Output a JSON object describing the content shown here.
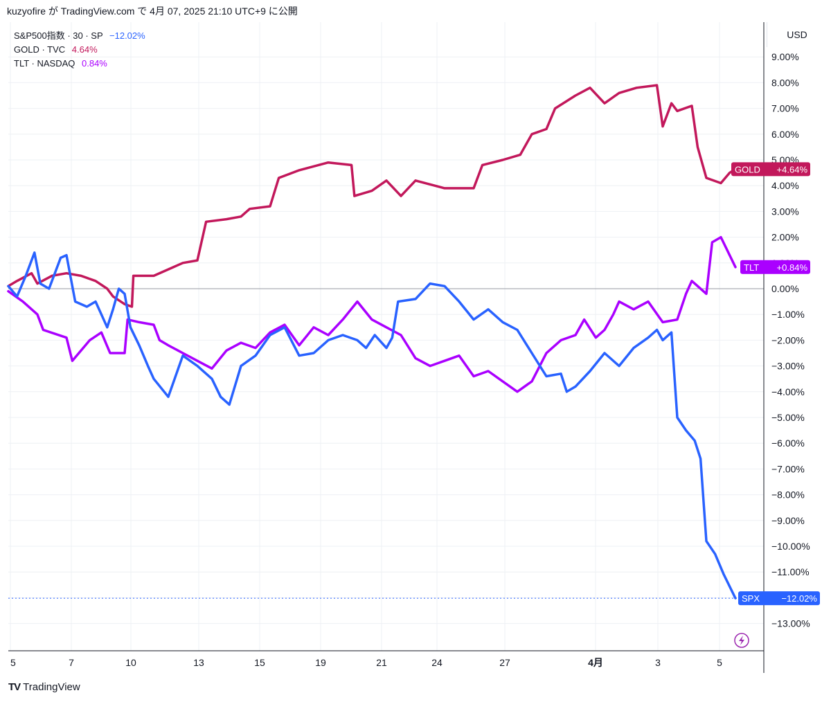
{
  "header": {
    "text": "kuzyofire が TradingView.com で 4月 07, 2025 21:10 UTC+9 に公開"
  },
  "legend": [
    {
      "symbol": "S&P500指数 · 30 · SP",
      "value": "−12.02%",
      "color": "#2962ff"
    },
    {
      "symbol": "GOLD · TVC",
      "value": "4.64%",
      "color": "#c2185b"
    },
    {
      "symbol": "TLT · NASDAQ",
      "value": "0.84%",
      "color": "#aa00ff"
    }
  ],
  "axis": {
    "currency": "USD"
  },
  "footer": {
    "brand": "TradingView",
    "logo": "TV"
  },
  "colors": {
    "spx": "#2962ff",
    "gold": "#c2185b",
    "tlt": "#aa00ff",
    "grid": "#eef0f4",
    "zero": "#9598a1"
  },
  "chart_data": {
    "type": "line",
    "y_unit": "%",
    "ylim": [
      -14,
      10
    ],
    "y_ticks": [
      9,
      8,
      7,
      6,
      5,
      4,
      3,
      2,
      1,
      0,
      -1,
      -2,
      -3,
      -4,
      -5,
      -6,
      -7,
      -8,
      -9,
      -10,
      -11,
      -12,
      -13
    ],
    "y_tick_labels": [
      "9.00%",
      "8.00%",
      "7.00%",
      "6.00%",
      "5.00%",
      "4.00%",
      "3.00%",
      "2.00%",
      "1.00%",
      "0.00%",
      "−1.00%",
      "−2.00%",
      "−3.00%",
      "−4.00%",
      "−5.00%",
      "−6.00%",
      "−7.00%",
      "−8.00%",
      "−9.00%",
      "−10.00%",
      "−11.00%",
      "−12.00%",
      "−13.00%"
    ],
    "x_ticks": [
      "5",
      "7",
      "10",
      "13",
      "15",
      "19",
      "21",
      "24",
      "27",
      "4月",
      "3",
      "5"
    ],
    "grid": true,
    "series": [
      {
        "name": "GOLD",
        "tag": "+4.64%",
        "points": [
          [
            0,
            0.1
          ],
          [
            0.3,
            0.3
          ],
          [
            0.8,
            0.6
          ],
          [
            1.0,
            0.2
          ],
          [
            1.5,
            0.5
          ],
          [
            2.0,
            0.6
          ],
          [
            2.5,
            0.5
          ],
          [
            3.0,
            0.3
          ],
          [
            3.4,
            0
          ],
          [
            3.6,
            -0.3
          ],
          [
            4.0,
            -0.6
          ],
          [
            4.25,
            -0.7
          ],
          [
            4.3,
            0.5
          ],
          [
            5.0,
            0.5
          ],
          [
            6.0,
            1.0
          ],
          [
            6.5,
            1.1
          ],
          [
            6.8,
            2.6
          ],
          [
            7.5,
            2.7
          ],
          [
            8.0,
            2.8
          ],
          [
            8.3,
            3.1
          ],
          [
            9.0,
            3.2
          ],
          [
            9.3,
            4.3
          ],
          [
            10.0,
            4.6
          ],
          [
            11.0,
            4.9
          ],
          [
            11.8,
            4.8
          ],
          [
            11.9,
            3.6
          ],
          [
            12.5,
            3.8
          ],
          [
            13.0,
            4.2
          ],
          [
            13.5,
            3.6
          ],
          [
            14.0,
            4.2
          ],
          [
            15.0,
            3.9
          ],
          [
            16.0,
            3.9
          ],
          [
            16.3,
            4.8
          ],
          [
            17.0,
            5.0
          ],
          [
            17.6,
            5.2
          ],
          [
            18.0,
            6.0
          ],
          [
            18.5,
            6.2
          ],
          [
            18.8,
            7.0
          ],
          [
            19.5,
            7.5
          ],
          [
            20.0,
            7.8
          ],
          [
            20.5,
            7.2
          ],
          [
            21.0,
            7.6
          ],
          [
            21.6,
            7.8
          ],
          [
            22.3,
            7.9
          ],
          [
            22.5,
            6.3
          ],
          [
            22.8,
            7.2
          ],
          [
            23.0,
            6.9
          ],
          [
            23.5,
            7.1
          ],
          [
            23.7,
            5.5
          ],
          [
            24.0,
            4.3
          ],
          [
            24.5,
            4.1
          ],
          [
            24.8,
            4.5
          ],
          [
            25.0,
            4.64
          ]
        ]
      },
      {
        "name": "TLT",
        "tag": "+0.84%",
        "points": [
          [
            0,
            -0.1
          ],
          [
            0.5,
            -0.5
          ],
          [
            1.0,
            -1.0
          ],
          [
            1.2,
            -1.6
          ],
          [
            2.0,
            -1.9
          ],
          [
            2.2,
            -2.8
          ],
          [
            2.8,
            -2.0
          ],
          [
            3.2,
            -1.7
          ],
          [
            3.5,
            -2.5
          ],
          [
            4.0,
            -2.5
          ],
          [
            4.1,
            -1.2
          ],
          [
            4.5,
            -1.3
          ],
          [
            5.0,
            -1.4
          ],
          [
            5.2,
            -2.0
          ],
          [
            5.5,
            -2.2
          ],
          [
            6.0,
            -2.5
          ],
          [
            6.5,
            -2.8
          ],
          [
            7.0,
            -3.1
          ],
          [
            7.5,
            -2.4
          ],
          [
            8.0,
            -2.1
          ],
          [
            8.5,
            -2.3
          ],
          [
            9.0,
            -1.7
          ],
          [
            9.5,
            -1.4
          ],
          [
            10.0,
            -2.2
          ],
          [
            10.5,
            -1.5
          ],
          [
            11.0,
            -1.8
          ],
          [
            11.5,
            -1.2
          ],
          [
            12.0,
            -0.5
          ],
          [
            12.5,
            -1.2
          ],
          [
            13.0,
            -1.5
          ],
          [
            13.5,
            -1.8
          ],
          [
            14.0,
            -2.7
          ],
          [
            14.5,
            -3.0
          ],
          [
            15.0,
            -2.8
          ],
          [
            15.5,
            -2.6
          ],
          [
            16.0,
            -3.4
          ],
          [
            16.5,
            -3.2
          ],
          [
            17.0,
            -3.6
          ],
          [
            17.5,
            -4.0
          ],
          [
            18.0,
            -3.6
          ],
          [
            18.5,
            -2.5
          ],
          [
            19.0,
            -2.0
          ],
          [
            19.5,
            -1.8
          ],
          [
            19.8,
            -1.2
          ],
          [
            20.2,
            -1.9
          ],
          [
            20.5,
            -1.6
          ],
          [
            20.8,
            -1.0
          ],
          [
            21.0,
            -0.5
          ],
          [
            21.5,
            -0.8
          ],
          [
            22.0,
            -0.5
          ],
          [
            22.5,
            -1.3
          ],
          [
            23.0,
            -1.2
          ],
          [
            23.3,
            -0.2
          ],
          [
            23.5,
            0.3
          ],
          [
            24.0,
            -0.2
          ],
          [
            24.2,
            1.8
          ],
          [
            24.5,
            2.0
          ],
          [
            25.0,
            0.84
          ]
        ]
      },
      {
        "name": "SPX",
        "tag": "−12.02%",
        "points": [
          [
            0,
            0.1
          ],
          [
            0.3,
            -0.3
          ],
          [
            0.6,
            0.5
          ],
          [
            0.9,
            1.4
          ],
          [
            1.1,
            0.2
          ],
          [
            1.4,
            0.0
          ],
          [
            1.8,
            1.2
          ],
          [
            2.0,
            1.3
          ],
          [
            2.3,
            -0.5
          ],
          [
            2.7,
            -0.7
          ],
          [
            3.0,
            -0.5
          ],
          [
            3.2,
            -1.0
          ],
          [
            3.4,
            -1.5
          ],
          [
            3.6,
            -0.8
          ],
          [
            3.8,
            0.0
          ],
          [
            4.0,
            -0.2
          ],
          [
            4.2,
            -1.5
          ],
          [
            4.5,
            -2.2
          ],
          [
            4.8,
            -3.0
          ],
          [
            5.0,
            -3.5
          ],
          [
            5.5,
            -4.2
          ],
          [
            6.0,
            -2.6
          ],
          [
            6.5,
            -3.0
          ],
          [
            7.0,
            -3.5
          ],
          [
            7.3,
            -4.2
          ],
          [
            7.6,
            -4.5
          ],
          [
            8.0,
            -3.0
          ],
          [
            8.5,
            -2.6
          ],
          [
            9.0,
            -1.8
          ],
          [
            9.5,
            -1.5
          ],
          [
            10.0,
            -2.6
          ],
          [
            10.5,
            -2.5
          ],
          [
            11.0,
            -2.0
          ],
          [
            11.5,
            -1.8
          ],
          [
            12.0,
            -2.0
          ],
          [
            12.3,
            -2.3
          ],
          [
            12.6,
            -1.8
          ],
          [
            13.0,
            -2.3
          ],
          [
            13.2,
            -1.9
          ],
          [
            13.4,
            -0.5
          ],
          [
            14.0,
            -0.4
          ],
          [
            14.5,
            0.2
          ],
          [
            15.0,
            0.1
          ],
          [
            15.5,
            -0.5
          ],
          [
            16.0,
            -1.2
          ],
          [
            16.5,
            -0.8
          ],
          [
            17.0,
            -1.3
          ],
          [
            17.5,
            -1.6
          ],
          [
            18.0,
            -2.5
          ],
          [
            18.5,
            -3.4
          ],
          [
            19.0,
            -3.3
          ],
          [
            19.2,
            -4.0
          ],
          [
            19.5,
            -3.8
          ],
          [
            20.0,
            -3.2
          ],
          [
            20.5,
            -2.5
          ],
          [
            21.0,
            -3.0
          ],
          [
            21.5,
            -2.3
          ],
          [
            22.0,
            -1.9
          ],
          [
            22.3,
            -1.6
          ],
          [
            22.5,
            -2.0
          ],
          [
            22.8,
            -1.7
          ],
          [
            23.0,
            -5.0
          ],
          [
            23.3,
            -5.5
          ],
          [
            23.6,
            -5.9
          ],
          [
            23.8,
            -6.6
          ],
          [
            24.0,
            -9.8
          ],
          [
            24.3,
            -10.3
          ],
          [
            24.6,
            -11.1
          ],
          [
            25.0,
            -12.02
          ]
        ]
      }
    ]
  }
}
